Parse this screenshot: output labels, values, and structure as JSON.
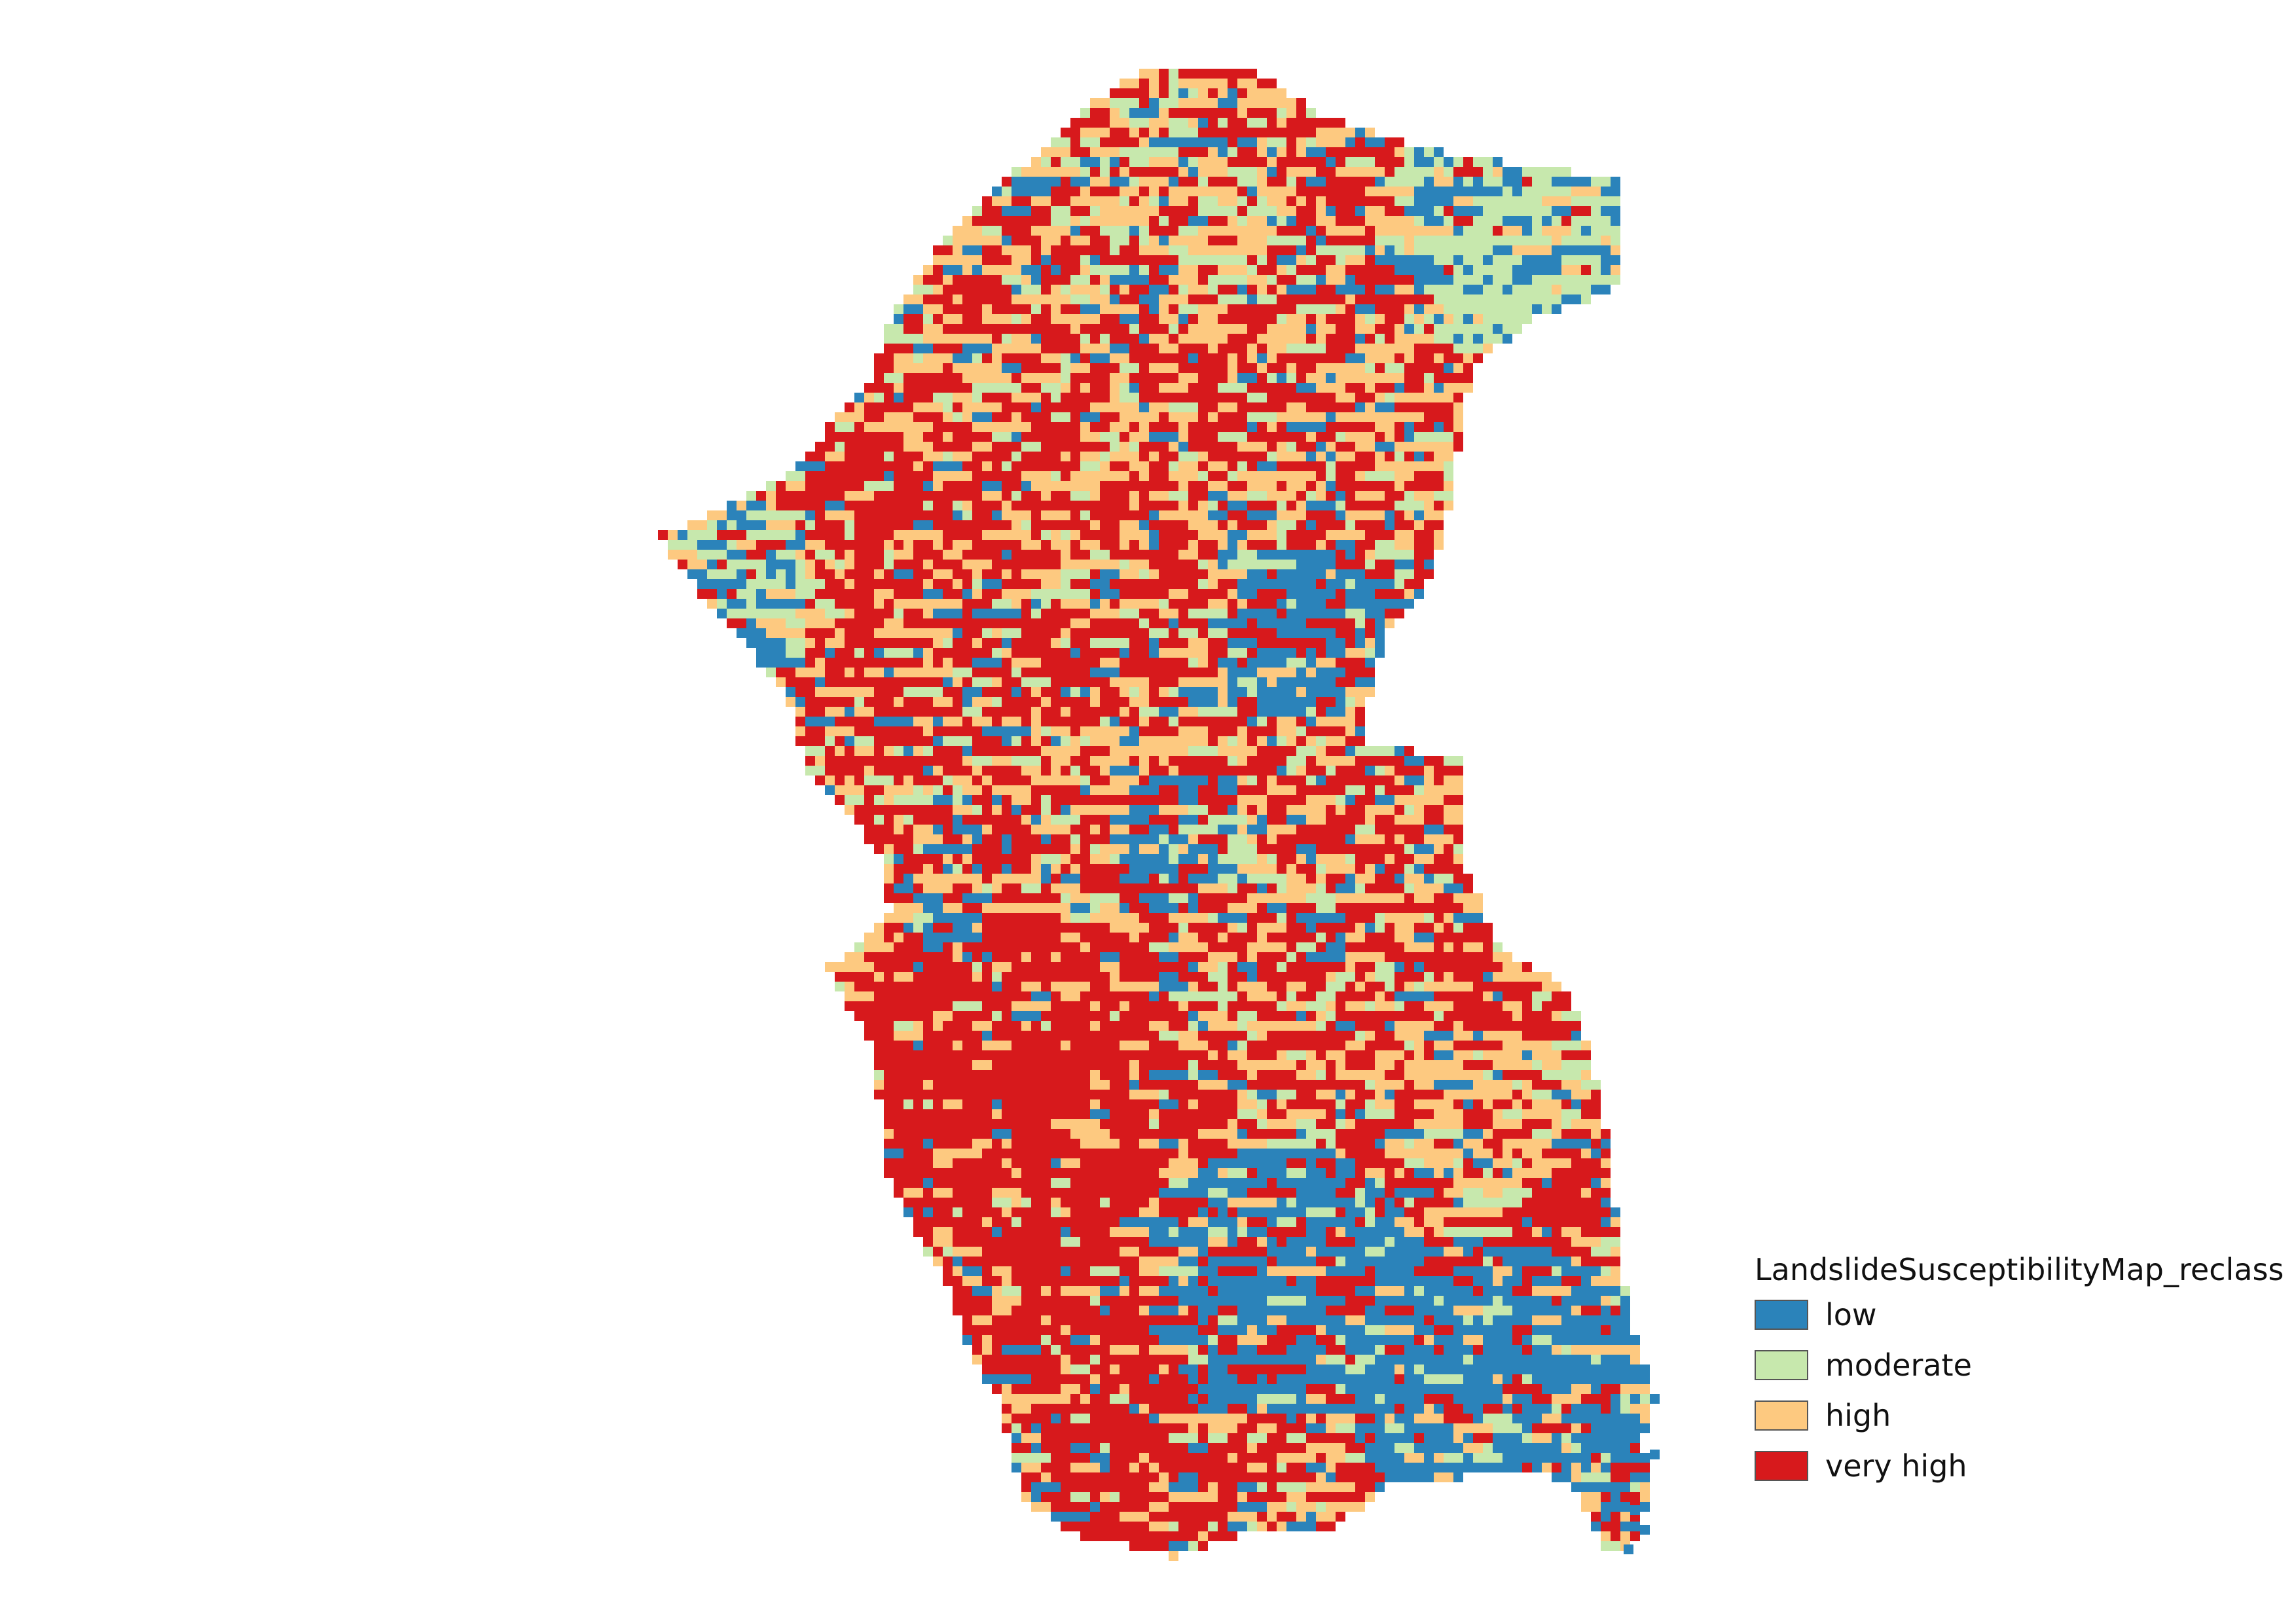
{
  "map": {
    "layer_name": "LandslideSusceptibilityMap_reclass"
  },
  "legend": {
    "title": "LandslideSusceptibilityMap_reclass",
    "items": [
      {
        "label": "low",
        "color": "#2b83ba"
      },
      {
        "label": "moderate",
        "color": "#c7e8ad"
      },
      {
        "label": "high",
        "color": "#fdc980"
      },
      {
        "label": "very high",
        "color": "#d7191c"
      }
    ]
  }
}
